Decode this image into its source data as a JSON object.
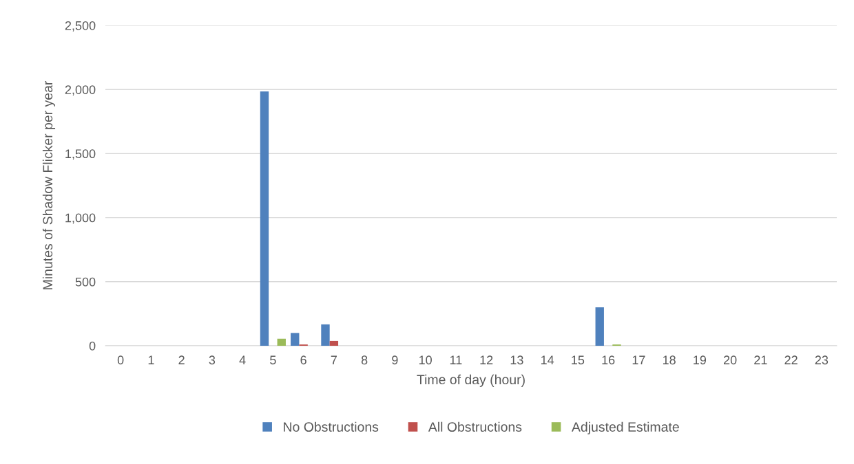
{
  "chart_data": {
    "type": "bar",
    "xlabel": "Time of day (hour)",
    "ylabel": "Minutes of Shadow Flicker per year",
    "categories": [
      "0",
      "1",
      "2",
      "3",
      "4",
      "5",
      "6",
      "7",
      "8",
      "9",
      "10",
      "11",
      "12",
      "13",
      "14",
      "15",
      "16",
      "17",
      "18",
      "19",
      "20",
      "21",
      "22",
      "23"
    ],
    "series": [
      {
        "name": "No Obstructions",
        "color": "#4f81bd",
        "values": [
          0,
          0,
          0,
          0,
          0,
          1985,
          100,
          167,
          0,
          0,
          0,
          0,
          0,
          0,
          0,
          0,
          300,
          0,
          0,
          0,
          0,
          0,
          0,
          0
        ]
      },
      {
        "name": "All Obstructions",
        "color": "#c0504d",
        "values": [
          0,
          0,
          0,
          0,
          0,
          0,
          10,
          38,
          0,
          0,
          0,
          0,
          0,
          0,
          0,
          0,
          0,
          0,
          0,
          0,
          0,
          0,
          0,
          0
        ]
      },
      {
        "name": "Adjusted Estimate",
        "color": "#9bbb59",
        "values": [
          0,
          0,
          0,
          0,
          0,
          55,
          0,
          null,
          0,
          0,
          0,
          0,
          0,
          0,
          0,
          0,
          10,
          0,
          0,
          0,
          0,
          0,
          0,
          0
        ]
      }
    ],
    "ylim": [
      0,
      2500
    ],
    "yticks": [
      {
        "value": 0,
        "label": "0"
      },
      {
        "value": 500,
        "label": "500"
      },
      {
        "value": 1000,
        "label": "1,000"
      },
      {
        "value": 1500,
        "label": "1,500"
      },
      {
        "value": 2000,
        "label": "2,000"
      },
      {
        "value": 2500,
        "label": "2,500"
      }
    ],
    "grid": "y",
    "legend": "bottom"
  }
}
